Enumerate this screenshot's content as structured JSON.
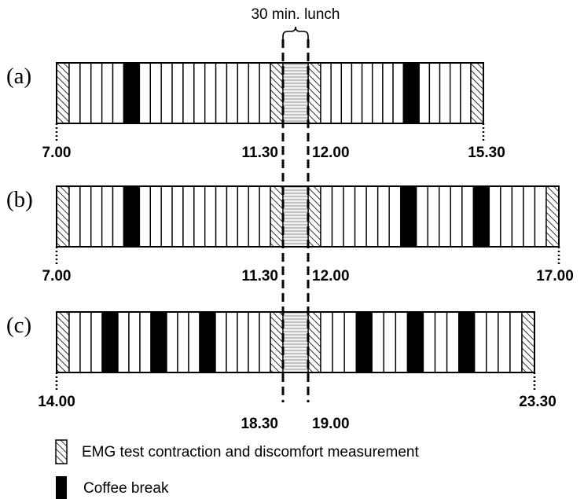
{
  "header": {
    "lunch_label": "30 min. lunch"
  },
  "rows": [
    {
      "label": "(a)",
      "start_label": "7.00",
      "lunch_start_label": "11.30",
      "lunch_end_label": "12.00",
      "end_label": "15.30",
      "before_lunch": [
        "emg",
        "w",
        "w",
        "w",
        "w",
        "w",
        "break",
        "w",
        "w",
        "w",
        "w",
        "w",
        "w",
        "w",
        "w",
        "w",
        "w",
        "w",
        "w",
        "emg"
      ],
      "after_lunch": [
        "emg",
        "w",
        "w",
        "w",
        "w",
        "w",
        "w",
        "w",
        "w",
        "break",
        "w",
        "w",
        "w",
        "w",
        "w",
        "emg"
      ]
    },
    {
      "label": "(b)",
      "start_label": "7.00",
      "lunch_start_label": "11.30",
      "lunch_end_label": "12.00",
      "end_label": "17.00",
      "before_lunch": [
        "emg",
        "w",
        "w",
        "w",
        "w",
        "w",
        "break",
        "w",
        "w",
        "w",
        "w",
        "w",
        "w",
        "w",
        "w",
        "w",
        "w",
        "w",
        "w",
        "emg"
      ],
      "after_lunch": [
        "emg",
        "w",
        "w",
        "w",
        "w",
        "w",
        "w",
        "w",
        "break",
        "w",
        "w",
        "w",
        "w",
        "w",
        "break",
        "w",
        "w",
        "w",
        "w",
        "w",
        "emg"
      ]
    },
    {
      "label": "(c)",
      "start_label": "14.00",
      "lunch_start_label": "18.30",
      "lunch_end_label": "19.00",
      "end_label": "23.30",
      "before_lunch": [
        "emg",
        "w",
        "w",
        "w",
        "break",
        "w",
        "w",
        "w",
        "break",
        "w",
        "w",
        "w",
        "break",
        "w",
        "w",
        "w",
        "w",
        "w",
        "emg"
      ],
      "after_lunch": [
        "emg",
        "w",
        "w",
        "w",
        "break",
        "w",
        "w",
        "w",
        "break",
        "w",
        "w",
        "w",
        "break",
        "w",
        "w",
        "w",
        "w",
        "emg"
      ]
    }
  ],
  "legend": [
    {
      "type": "emg",
      "label": "EMG test contraction and discomfort measurement"
    },
    {
      "type": "break",
      "label": "Coffee break"
    }
  ],
  "colors": {
    "ink": "#000000",
    "paper": "#ffffff",
    "lunch_fill": "#f2f2f2"
  }
}
